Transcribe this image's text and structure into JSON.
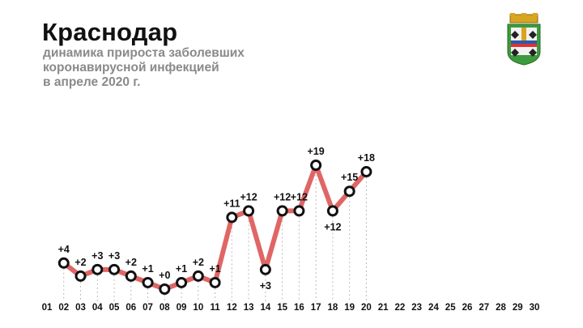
{
  "header": {
    "title": "Краснодар",
    "subtitle_lines": [
      "динамика прироста заболевших",
      "коронавирусной инфекцией",
      "в апреле 2020 г."
    ]
  },
  "colors": {
    "line": "#e06666",
    "marker_stroke": "#111111",
    "marker_fill": "#ffffff",
    "guide": "#bbbbbb",
    "title": "#111111",
    "subtitle": "#8a8a8a"
  },
  "emblem": {
    "icon": "coat-of-arms-icon"
  },
  "chart_data": {
    "type": "line",
    "x": [
      "01",
      "02",
      "03",
      "04",
      "05",
      "06",
      "07",
      "08",
      "09",
      "10",
      "11",
      "12",
      "13",
      "14",
      "15",
      "16",
      "17",
      "18",
      "19",
      "20",
      "21",
      "22",
      "23",
      "24",
      "25",
      "26",
      "27",
      "28",
      "29",
      "30"
    ],
    "series": [
      {
        "x": [
          "02",
          "03",
          "04",
          "05",
          "06",
          "07",
          "08",
          "09",
          "10",
          "11",
          "12",
          "13",
          "14",
          "15",
          "16",
          "17",
          "18",
          "19",
          "20"
        ],
        "values": [
          4,
          2,
          3,
          3,
          2,
          1,
          0,
          1,
          2,
          1,
          11,
          12,
          3,
          12,
          12,
          19,
          12,
          15,
          18
        ],
        "labels": [
          "+4",
          "+2",
          "+3",
          "+3",
          "+2",
          "+1",
          "+0",
          "+1",
          "+2",
          "+1",
          "+11",
          "+12",
          "+3",
          "+12",
          "+12",
          "+19",
          "+12",
          "+15",
          "+18"
        ]
      }
    ],
    "xlabel": "",
    "ylabel": "",
    "ylim": [
      0,
      19
    ],
    "grid": false,
    "legend": "none"
  }
}
